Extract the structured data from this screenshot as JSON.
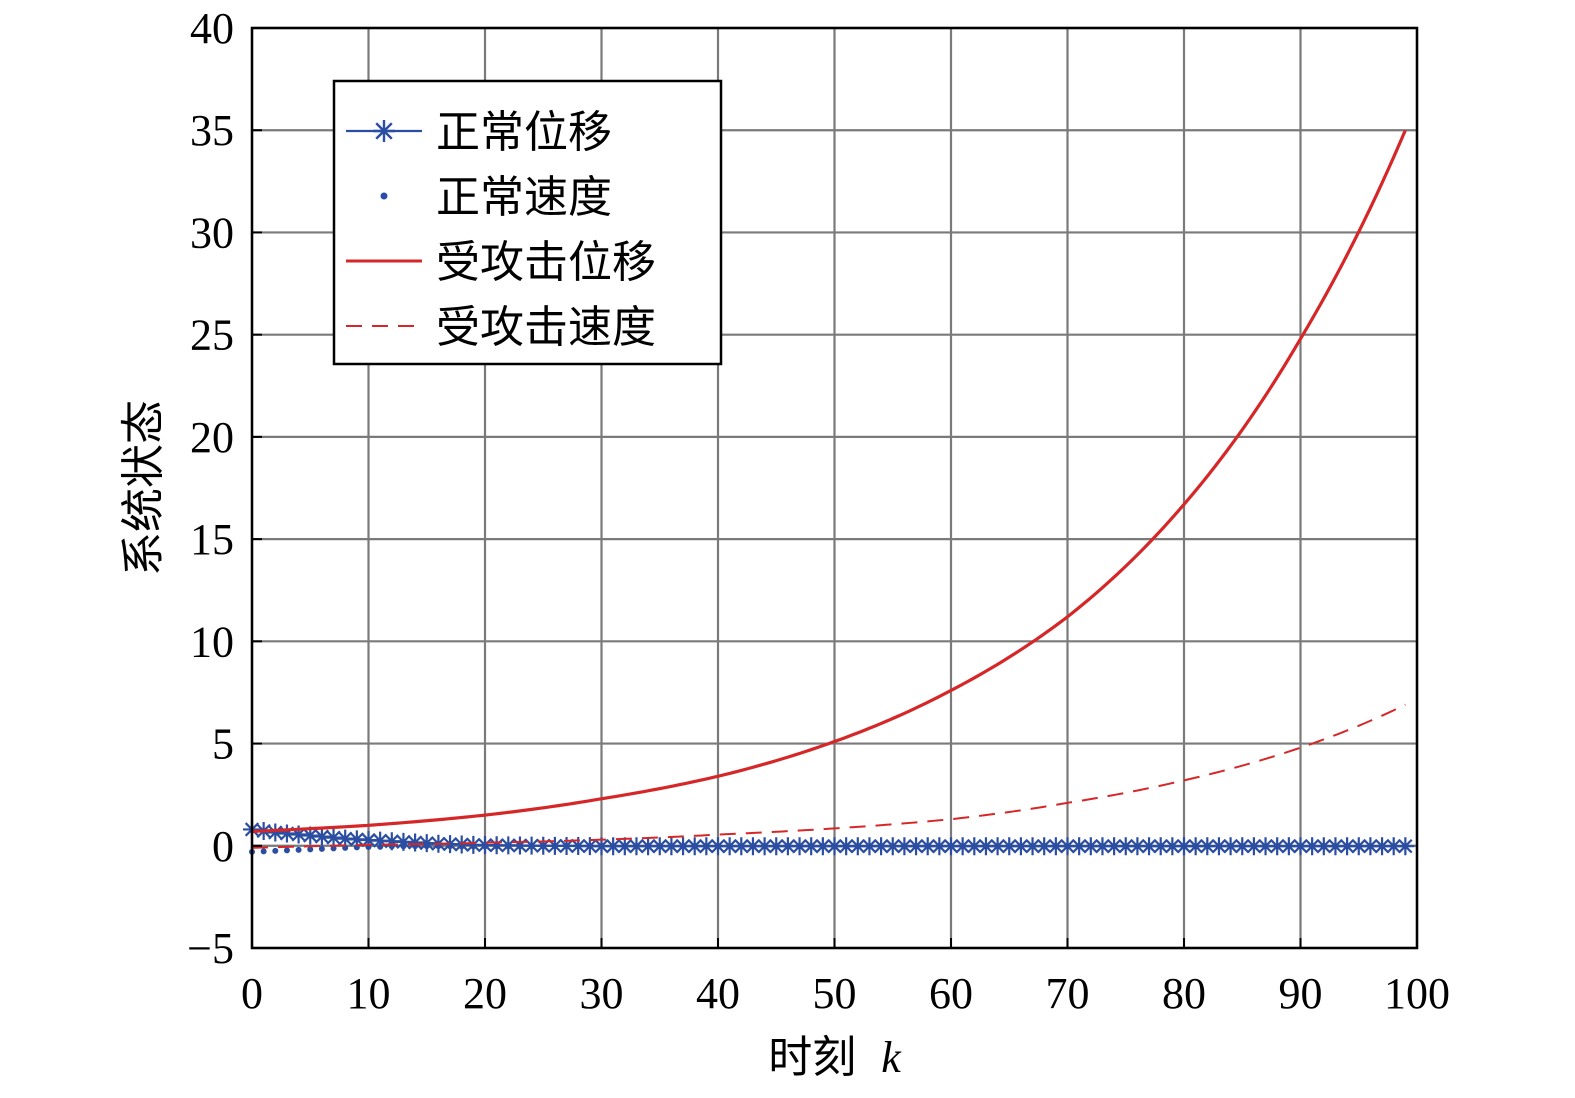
{
  "chart_data": {
    "type": "line",
    "title": "",
    "xlabel": "时刻",
    "xlabel_var": "k",
    "ylabel": "系统状态",
    "xlim": [
      0,
      100
    ],
    "ylim": [
      -5,
      40
    ],
    "xticks": [
      0,
      10,
      20,
      30,
      40,
      50,
      60,
      70,
      80,
      90,
      100
    ],
    "yticks": [
      -5,
      0,
      5,
      10,
      15,
      20,
      25,
      30,
      35,
      40
    ],
    "xtick_labels": [
      "0",
      "10",
      "20",
      "30",
      "40",
      "50",
      "60",
      "70",
      "80",
      "90",
      "100"
    ],
    "ytick_labels": [
      "−5",
      "0",
      "5",
      "10",
      "15",
      "20",
      "25",
      "30",
      "35",
      "40"
    ],
    "grid": true,
    "legend_position": "top-left",
    "colors": {
      "blue": "#2b4ea2",
      "red": "#d62728",
      "grid": "#7a7a7a"
    },
    "series": [
      {
        "name": "正常位移",
        "style": "line-star",
        "color": "#2b4ea2",
        "x": [
          0,
          2,
          4,
          6,
          8,
          10,
          12,
          14,
          16,
          18,
          20,
          25,
          30,
          40,
          50,
          60,
          70,
          80,
          90,
          99
        ],
        "y": [
          0.8,
          0.65,
          0.55,
          0.45,
          0.35,
          0.28,
          0.22,
          0.16,
          0.1,
          0.06,
          0.03,
          0.0,
          -0.02,
          -0.02,
          -0.02,
          -0.02,
          -0.02,
          -0.02,
          -0.02,
          -0.02
        ]
      },
      {
        "name": "正常速度",
        "style": "dots",
        "color": "#2b4ea2",
        "x": [
          0,
          2,
          4,
          6,
          8,
          10,
          12,
          14,
          16,
          18,
          20,
          25,
          30,
          40,
          50,
          60,
          70,
          80,
          90,
          99
        ],
        "y": [
          -0.3,
          -0.25,
          -0.2,
          -0.15,
          -0.1,
          -0.06,
          -0.03,
          -0.02,
          -0.02,
          -0.03,
          -0.03,
          -0.03,
          -0.02,
          -0.02,
          -0.02,
          -0.02,
          -0.02,
          -0.02,
          -0.02,
          -0.02
        ]
      },
      {
        "name": "受攻击位移",
        "style": "solid",
        "color": "#d62728",
        "x": [
          0,
          10,
          20,
          30,
          40,
          50,
          60,
          70,
          80,
          90,
          99
        ],
        "y": [
          0.7,
          1.0,
          1.5,
          2.3,
          3.4,
          5.1,
          7.6,
          11.2,
          16.7,
          24.8,
          35.0
        ]
      },
      {
        "name": "受攻击速度",
        "style": "dashed",
        "color": "#d62728",
        "x": [
          0,
          10,
          20,
          30,
          40,
          50,
          60,
          70,
          80,
          90,
          99
        ],
        "y": [
          -0.1,
          0.05,
          0.15,
          0.3,
          0.55,
          0.85,
          1.3,
          2.1,
          3.2,
          4.8,
          6.9
        ]
      }
    ]
  }
}
